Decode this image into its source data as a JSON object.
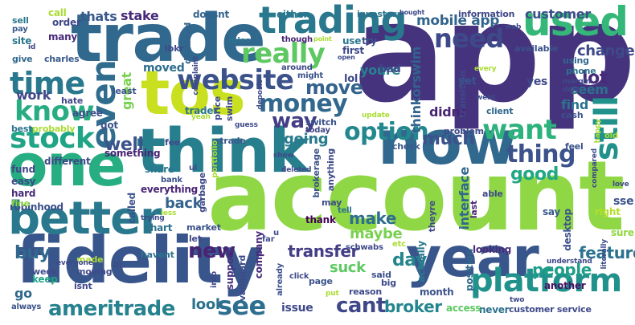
{
  "words": [
    {
      "id": "app",
      "text": "app",
      "color": "#46337e"
    },
    {
      "id": "account",
      "text": "account",
      "color": "#8fd744"
    },
    {
      "id": "trade",
      "text": "trade",
      "color": "#31688e"
    },
    {
      "id": "tos",
      "text": "tos",
      "color": "#c8e020"
    },
    {
      "id": "think",
      "text": "think",
      "color": "#277f8e"
    },
    {
      "id": "now",
      "text": "now",
      "color": "#31688e"
    },
    {
      "id": "one",
      "text": "one",
      "color": "#26ad81"
    },
    {
      "id": "fidelity",
      "text": "fidelity",
      "color": "#39568c"
    },
    {
      "id": "year",
      "text": "year",
      "color": "#39568c"
    },
    {
      "id": "better",
      "text": "better",
      "color": "#2a788e"
    },
    {
      "id": "trading",
      "text": "trading",
      "color": "#2a788e"
    },
    {
      "id": "used",
      "text": "used",
      "color": "#35b779"
    },
    {
      "id": "website",
      "text": "website",
      "color": "#3b528b"
    },
    {
      "id": "platform",
      "text": "platform",
      "color": "#21918c"
    },
    {
      "id": "time",
      "text": "time",
      "color": "#2a788e"
    },
    {
      "id": "stock",
      "text": "stock",
      "color": "#20a486"
    },
    {
      "id": "know",
      "text": "know",
      "color": "#27ad81"
    },
    {
      "id": "really",
      "text": "really",
      "color": "#5ec962"
    },
    {
      "id": "money",
      "text": "money",
      "color": "#31688e"
    },
    {
      "id": "want",
      "text": "want",
      "color": "#2db27d"
    },
    {
      "id": "need",
      "text": "need",
      "color": "#3e4989"
    },
    {
      "id": "still",
      "text": "still",
      "color": "#21918c"
    },
    {
      "id": "even",
      "text": "even",
      "color": "#2f6c8e"
    },
    {
      "id": "thing",
      "text": "thing",
      "color": "#3b528b"
    },
    {
      "id": "option",
      "text": "option",
      "color": "#23888e"
    },
    {
      "id": "see",
      "text": "see",
      "color": "#2e6e8e"
    },
    {
      "id": "ameritrade",
      "text": "ameritrade",
      "color": "#26828e"
    },
    {
      "id": "way",
      "text": "way",
      "color": "#433e85"
    },
    {
      "id": "much",
      "text": "much",
      "color": "#3b528b"
    },
    {
      "id": "move",
      "text": "move",
      "color": "#33628d"
    },
    {
      "id": "cant",
      "text": "cant",
      "color": "#3f4788"
    },
    {
      "id": "people",
      "text": "people",
      "color": "#1f9e89"
    },
    {
      "id": "new",
      "text": "new",
      "color": "#482374"
    },
    {
      "id": "good",
      "text": "good",
      "color": "#22a785"
    },
    {
      "id": "day",
      "text": "day",
      "color": "#25858e"
    },
    {
      "id": "lot",
      "text": "lot",
      "color": "#472a7a"
    },
    {
      "id": "well",
      "text": "well",
      "color": "#3a538b"
    },
    {
      "id": "buy",
      "text": "buy",
      "color": "#31688e"
    },
    {
      "id": "broker",
      "text": "broker",
      "color": "#25858e"
    },
    {
      "id": "make",
      "text": "make",
      "color": "#2e6f8e"
    },
    {
      "id": "going",
      "text": "going",
      "color": "#297b8e"
    },
    {
      "id": "customer",
      "text": "customer",
      "color": "#3c4f8a"
    },
    {
      "id": "mobile_app",
      "text": "mobile app",
      "color": "#32658e"
    },
    {
      "id": "feature",
      "text": "feature",
      "color": "#2c728e"
    },
    {
      "id": "transfer",
      "text": "transfer",
      "color": "#433e85"
    },
    {
      "id": "maybe",
      "text": "maybe",
      "color": "#7ad151"
    },
    {
      "id": "change",
      "text": "change",
      "color": "#3e4a89"
    },
    {
      "id": "back",
      "text": "back",
      "color": "#33638d"
    },
    {
      "id": "look",
      "text": "look",
      "color": "#2c728e"
    },
    {
      "id": "issue",
      "text": "issue",
      "color": "#3e4989"
    },
    {
      "id": "thats",
      "text": "thats",
      "color": "#38598c"
    },
    {
      "id": "stake",
      "text": "stake",
      "color": "#482979"
    },
    {
      "id": "work",
      "text": "work",
      "color": "#3f4889"
    },
    {
      "id": "moved",
      "text": "moved",
      "color": "#2e6e8e"
    },
    {
      "id": "youre",
      "text": "youre",
      "color": "#26828e"
    },
    {
      "id": "suck",
      "text": "suck",
      "color": "#5ec962"
    },
    {
      "id": "find",
      "text": "find",
      "color": "#2c718e"
    },
    {
      "id": "seem",
      "text": "seem",
      "color": "#2c728e"
    },
    {
      "id": "interface",
      "text": "interface",
      "color": "#31688e"
    },
    {
      "id": "thinkorswim",
      "text": "thinkorswim",
      "color": "#32648e"
    },
    {
      "id": "great",
      "text": "great",
      "color": "#7ad151"
    },
    {
      "id": "sse",
      "text": "sse",
      "color": "#3b528b"
    },
    {
      "id": "didnt",
      "text": "didnt",
      "color": "#482475"
    },
    {
      "id": "go",
      "text": "go",
      "color": "#31688e"
    },
    {
      "id": "yes",
      "text": "yes",
      "color": "#3e4989"
    },
    {
      "id": "lol",
      "text": "lol",
      "color": "#3e4a89"
    },
    {
      "id": "yet",
      "text": "yet",
      "color": "#39568c"
    },
    {
      "id": "many",
      "text": "many",
      "color": "#482878"
    },
    {
      "id": "site",
      "text": "site",
      "color": "#2a788e"
    },
    {
      "id": "agree",
      "text": "agree",
      "color": "#3c4f8a"
    },
    {
      "id": "got",
      "text": "got",
      "color": "#3b528b"
    },
    {
      "id": "trader",
      "text": "trader",
      "color": "#2a768e"
    },
    {
      "id": "different",
      "text": "different",
      "color": "#3f4788"
    },
    {
      "id": "something",
      "text": "something",
      "color": "#482475"
    },
    {
      "id": "share",
      "text": "share",
      "color": "#2a788e"
    },
    {
      "id": "everything",
      "text": "everything",
      "color": "#482475"
    },
    {
      "id": "robinhood",
      "text": "robinhood",
      "color": "#3b528b"
    },
    {
      "id": "keep",
      "text": "keep",
      "color": "#20a386"
    },
    {
      "id": "support",
      "text": "support",
      "color": "#46327e"
    },
    {
      "id": "actually",
      "text": "actually",
      "color": "#2a788e"
    },
    {
      "id": "position",
      "text": "position",
      "color": "#31688e"
    },
    {
      "id": "looking",
      "text": "looking",
      "color": "#472d7b"
    },
    {
      "id": "say",
      "text": "say",
      "color": "#38598c"
    },
    {
      "id": "desktop",
      "text": "desktop",
      "color": "#3b528b"
    },
    {
      "id": "sure",
      "text": "sure",
      "color": "#8fd744"
    },
    {
      "id": "right",
      "text": "right",
      "color": "#b5de2b"
    },
    {
      "id": "another",
      "text": "another",
      "color": "#471365"
    },
    {
      "id": "never",
      "text": "never",
      "color": "#2c718e"
    },
    {
      "id": "customer_service",
      "text": "customer service",
      "color": "#3e4a89"
    },
    {
      "id": "access",
      "text": "access",
      "color": "#5ec962"
    },
    {
      "id": "month",
      "text": "month",
      "color": "#3b528b"
    },
    {
      "id": "thank",
      "text": "thank",
      "color": "#440154"
    },
    {
      "id": "fund",
      "text": "fund",
      "color": "#3f4788"
    },
    {
      "id": "easy",
      "text": "easy",
      "color": "#3e4a89"
    },
    {
      "id": "hard",
      "text": "hard",
      "color": "#472d7b"
    },
    {
      "id": "fine",
      "text": "fine",
      "color": "#8fd744"
    },
    {
      "id": "chart",
      "text": "chart",
      "color": "#2c728e"
    },
    {
      "id": "market",
      "text": "market",
      "color": "#3b528b"
    },
    {
      "id": "called",
      "text": "called",
      "color": "#3b528b"
    },
    {
      "id": "company",
      "text": "company",
      "color": "#472a7a"
    },
    {
      "id": "doesnt",
      "text": "doesnt",
      "color": "#33638d"
    },
    {
      "id": "either",
      "text": "either",
      "color": "#2a788e"
    },
    {
      "id": "investor",
      "text": "investor",
      "color": "#2c728e"
    },
    {
      "id": "information",
      "text": "information",
      "color": "#3f4788"
    },
    {
      "id": "call",
      "text": "call",
      "color": "#aadc32"
    },
    {
      "id": "order",
      "text": "order",
      "color": "#3f4788"
    },
    {
      "id": "sell",
      "text": "sell",
      "color": "#2a788e"
    },
    {
      "id": "pay",
      "text": "pay",
      "color": "#38598c"
    },
    {
      "id": "give",
      "text": "give",
      "color": "#31688e"
    },
    {
      "id": "charles",
      "text": "charles",
      "color": "#38598c"
    },
    {
      "id": "miss",
      "text": "miss",
      "color": "#2c728e"
    },
    {
      "id": "though",
      "text": "though",
      "color": "#482475"
    },
    {
      "id": "use",
      "text": "use",
      "color": "#2a788e"
    },
    {
      "id": "try",
      "text": "try",
      "color": "#3b528b"
    },
    {
      "id": "first",
      "text": "first",
      "color": "#3e4a89"
    },
    {
      "id": "bad",
      "text": "bad",
      "color": "#3f4788"
    },
    {
      "id": "available",
      "text": "available",
      "color": "#3b528b"
    },
    {
      "id": "using",
      "text": "using",
      "color": "#31688e"
    },
    {
      "id": "phone",
      "text": "phone",
      "color": "#2c728e"
    },
    {
      "id": "ibkr",
      "text": "ibkr",
      "color": "#3e4a89"
    },
    {
      "id": "dividend",
      "text": "dividend",
      "color": "#33638d"
    },
    {
      "id": "around",
      "text": "around",
      "color": "#3e4a89"
    },
    {
      "id": "might",
      "text": "might",
      "color": "#3b528b"
    },
    {
      "id": "least",
      "text": "least",
      "color": "#3b528b"
    },
    {
      "id": "hate",
      "text": "hate",
      "color": "#3f4788"
    },
    {
      "id": "best",
      "text": "best",
      "color": "#2c728e"
    },
    {
      "id": "probably",
      "text": "probably",
      "color": "#aadc32"
    },
    {
      "id": "price",
      "text": "price",
      "color": "#3e4989"
    },
    {
      "id": "swim",
      "text": "swim",
      "color": "#3f4788"
    },
    {
      "id": "switch",
      "text": "switch",
      "color": "#3b528b"
    },
    {
      "id": "today",
      "text": "today",
      "color": "#3f4788"
    },
    {
      "id": "problem",
      "text": "problem",
      "color": "#3e4a89"
    },
    {
      "id": "client",
      "text": "client",
      "color": "#31688e"
    },
    {
      "id": "cash",
      "text": "cash",
      "color": "#3b528b"
    },
    {
      "id": "check",
      "text": "check",
      "color": "#38598c"
    },
    {
      "id": "feel",
      "text": "feel",
      "color": "#3b528b"
    },
    {
      "id": "etrade",
      "text": "etrade",
      "color": "#38598c"
    },
    {
      "id": "fee",
      "text": "fee",
      "color": "#3e4a89"
    },
    {
      "id": "able",
      "text": "able",
      "color": "#3e4a89"
    },
    {
      "id": "last",
      "text": "last",
      "color": "#482475"
    },
    {
      "id": "may",
      "text": "may",
      "color": "#3e4a89"
    },
    {
      "id": "tell",
      "text": "tell",
      "color": "#2c728e"
    },
    {
      "id": "theyre",
      "text": "theyre",
      "color": "#3e4a89"
    },
    {
      "id": "brokerage",
      "text": "brokerage",
      "color": "#3b528b"
    },
    {
      "id": "anything",
      "text": "anything",
      "color": "#3e4a89"
    },
    {
      "id": "garbage",
      "text": "garbage",
      "color": "#3e4a89"
    },
    {
      "id": "portfolio",
      "text": "portfolio",
      "color": "#aadc32"
    },
    {
      "id": "bank",
      "text": "bank",
      "color": "#3b528b"
    },
    {
      "id": "let",
      "text": "let",
      "color": "#3f4788"
    },
    {
      "id": "made",
      "text": "made",
      "color": "#aadc32"
    },
    {
      "id": "havent",
      "text": "havent",
      "color": "#2c728e"
    },
    {
      "id": "ill",
      "text": "ill",
      "color": "#3e4a89"
    },
    {
      "id": "week",
      "text": "week",
      "color": "#3e4a89"
    },
    {
      "id": "moving",
      "text": "moving",
      "color": "#3e4a89"
    },
    {
      "id": "isnt",
      "text": "isnt",
      "color": "#3f4788"
    },
    {
      "id": "always",
      "text": "always",
      "color": "#3b528b"
    },
    {
      "id": "everyone",
      "text": "everyone",
      "color": "#3e4a89"
    },
    {
      "id": "info",
      "text": "info",
      "color": "#3f4788"
    },
    {
      "id": "vanguard",
      "text": "vanguard",
      "color": "#3e4a89"
    },
    {
      "id": "already",
      "text": "already",
      "color": "#3b528b"
    },
    {
      "id": "click",
      "text": "click",
      "color": "#3e4a89"
    },
    {
      "id": "page",
      "text": "page",
      "color": "#3b528b"
    },
    {
      "id": "said",
      "text": "said",
      "color": "#3b528b"
    },
    {
      "id": "big",
      "text": "big",
      "color": "#3e4a89"
    },
    {
      "id": "reason",
      "text": "reason",
      "color": "#3e4a89"
    },
    {
      "id": "schwabs",
      "text": "schwabs",
      "color": "#3e4a89"
    },
    {
      "id": "etc",
      "text": "etc",
      "color": "#aadc32"
    },
    {
      "id": "far",
      "text": "far",
      "color": "#3e4a89"
    },
    {
      "id": "u",
      "text": "u",
      "color": "#3e4a89"
    },
    {
      "id": "understand",
      "text": "understand",
      "color": "#3e4a89"
    },
    {
      "id": "literally",
      "text": "literally",
      "color": "#3e4a89"
    },
    {
      "id": "love",
      "text": "love",
      "color": "#3e4a89"
    },
    {
      "id": "margin",
      "text": "margin",
      "color": "#3e4a89"
    },
    {
      "id": "data",
      "text": "data",
      "color": "#3e4a89"
    },
    {
      "id": "went",
      "text": "went",
      "color": "#3e4a89"
    },
    {
      "id": "web",
      "text": "web",
      "color": "#3e4a89"
    },
    {
      "id": "every",
      "text": "every",
      "color": "#aadc32"
    },
    {
      "id": "transition",
      "text": "transition",
      "color": "#3e4a89"
    },
    {
      "id": "complaint",
      "text": "complaint",
      "color": "#3e4a89"
    },
    {
      "id": "deposit",
      "text": "deposit",
      "color": "#3e4a89"
    },
    {
      "id": "update",
      "text": "update",
      "color": "#aadc32"
    },
    {
      "id": "guess",
      "text": "guess",
      "color": "#3e4a89"
    },
    {
      "id": "yeah",
      "text": "yeah",
      "color": "#aadc32"
    },
    {
      "id": "show",
      "text": "show",
      "color": "#3e4a89"
    },
    {
      "id": "deleted",
      "text": "deleted",
      "color": "#3e4a89"
    },
    {
      "id": "ui",
      "text": "ui",
      "color": "#3e4a89"
    },
    {
      "id": "trying",
      "text": "trying",
      "color": "#3e4a89"
    },
    {
      "id": "less",
      "text": "less",
      "color": "#aadc32"
    },
    {
      "id": "put",
      "text": "put",
      "color": "#aadc32"
    },
    {
      "id": "two",
      "text": "two",
      "color": "#3e4a89"
    },
    {
      "id": "old",
      "text": "old",
      "color": "#aadc32"
    },
    {
      "id": "id",
      "text": "id",
      "color": "#3e4a89"
    },
    {
      "id": "point",
      "text": "point",
      "color": "#aadc32"
    },
    {
      "id": "open",
      "text": "open",
      "color": "#3e4a89"
    },
    {
      "id": "bought",
      "text": "bought",
      "color": "#3e4a89"
    },
    {
      "id": "compared",
      "text": "compared",
      "color": "#3e4a89"
    },
    {
      "id": "happy",
      "text": "happy",
      "color": "#aadc32"
    }
  ]
}
